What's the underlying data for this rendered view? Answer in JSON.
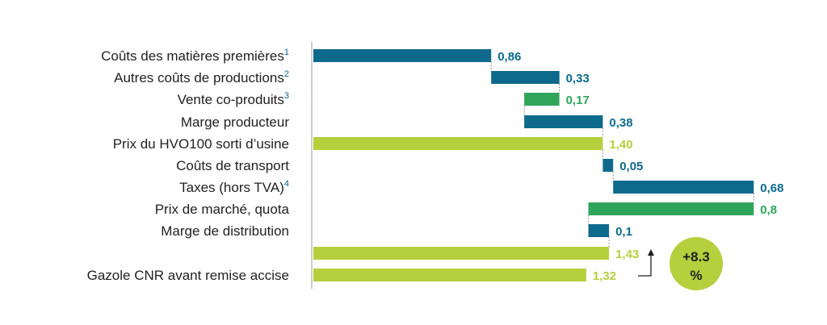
{
  "colors": {
    "blue": "#0e6a8c",
    "green": "#2ea55b",
    "lime": "#b5cf3d",
    "connector": "#7a7a7a",
    "axis": "#9a9a9a",
    "text": "#1f1f1f"
  },
  "chart_data": {
    "type": "waterfall",
    "title": "",
    "unit_note": "",
    "rows": [
      {
        "label": "Coûts des matières premières",
        "sup": "1",
        "value": 0.86,
        "value_label": "0,86",
        "start": 0,
        "end": 0.86,
        "color": "blue"
      },
      {
        "label": "Autres coûts de productions",
        "sup": "2",
        "value": 0.33,
        "value_label": "0,33",
        "start": 0.86,
        "end": 1.19,
        "color": "blue"
      },
      {
        "label": "Vente co-produits",
        "sup": "3",
        "value": -0.17,
        "value_label": "0,17",
        "start": 1.02,
        "end": 1.19,
        "color": "green"
      },
      {
        "label": "Marge producteur",
        "sup": "",
        "value": 0.38,
        "value_label": "0,38",
        "start": 1.02,
        "end": 1.4,
        "color": "blue"
      },
      {
        "label": "Prix du HVO100 sorti d’usine",
        "sup": "",
        "value": 1.4,
        "value_label": "1,40",
        "start": 0,
        "end": 1.4,
        "color": "lime"
      },
      {
        "label": "Coûts de transport",
        "sup": "",
        "value": 0.05,
        "value_label": "0,05",
        "start": 1.4,
        "end": 1.45,
        "color": "blue"
      },
      {
        "label": "Taxes (hors TVA)",
        "sup": "4",
        "value": 0.68,
        "value_label": "0,68",
        "start": 1.45,
        "end": 2.13,
        "color": "blue"
      },
      {
        "label": "Prix de marché, quota",
        "sup": "",
        "value": -0.8,
        "value_label": "0,8",
        "start": 1.33,
        "end": 2.13,
        "color": "green"
      },
      {
        "label": "Marge de distribution",
        "sup": "",
        "value": 0.1,
        "value_label": "0,1",
        "start": 1.33,
        "end": 1.43,
        "color": "blue"
      },
      {
        "label": "",
        "sup": "",
        "value": 1.43,
        "value_label": "1,43",
        "start": 0,
        "end": 1.43,
        "color": "lime"
      },
      {
        "label": "Gazole CNR avant remise accise",
        "sup": "",
        "value": 1.32,
        "value_label": "1,32",
        "start": 0,
        "end": 1.32,
        "color": "lime"
      }
    ],
    "badge": {
      "line1": "+8.3",
      "line2": "%"
    }
  }
}
